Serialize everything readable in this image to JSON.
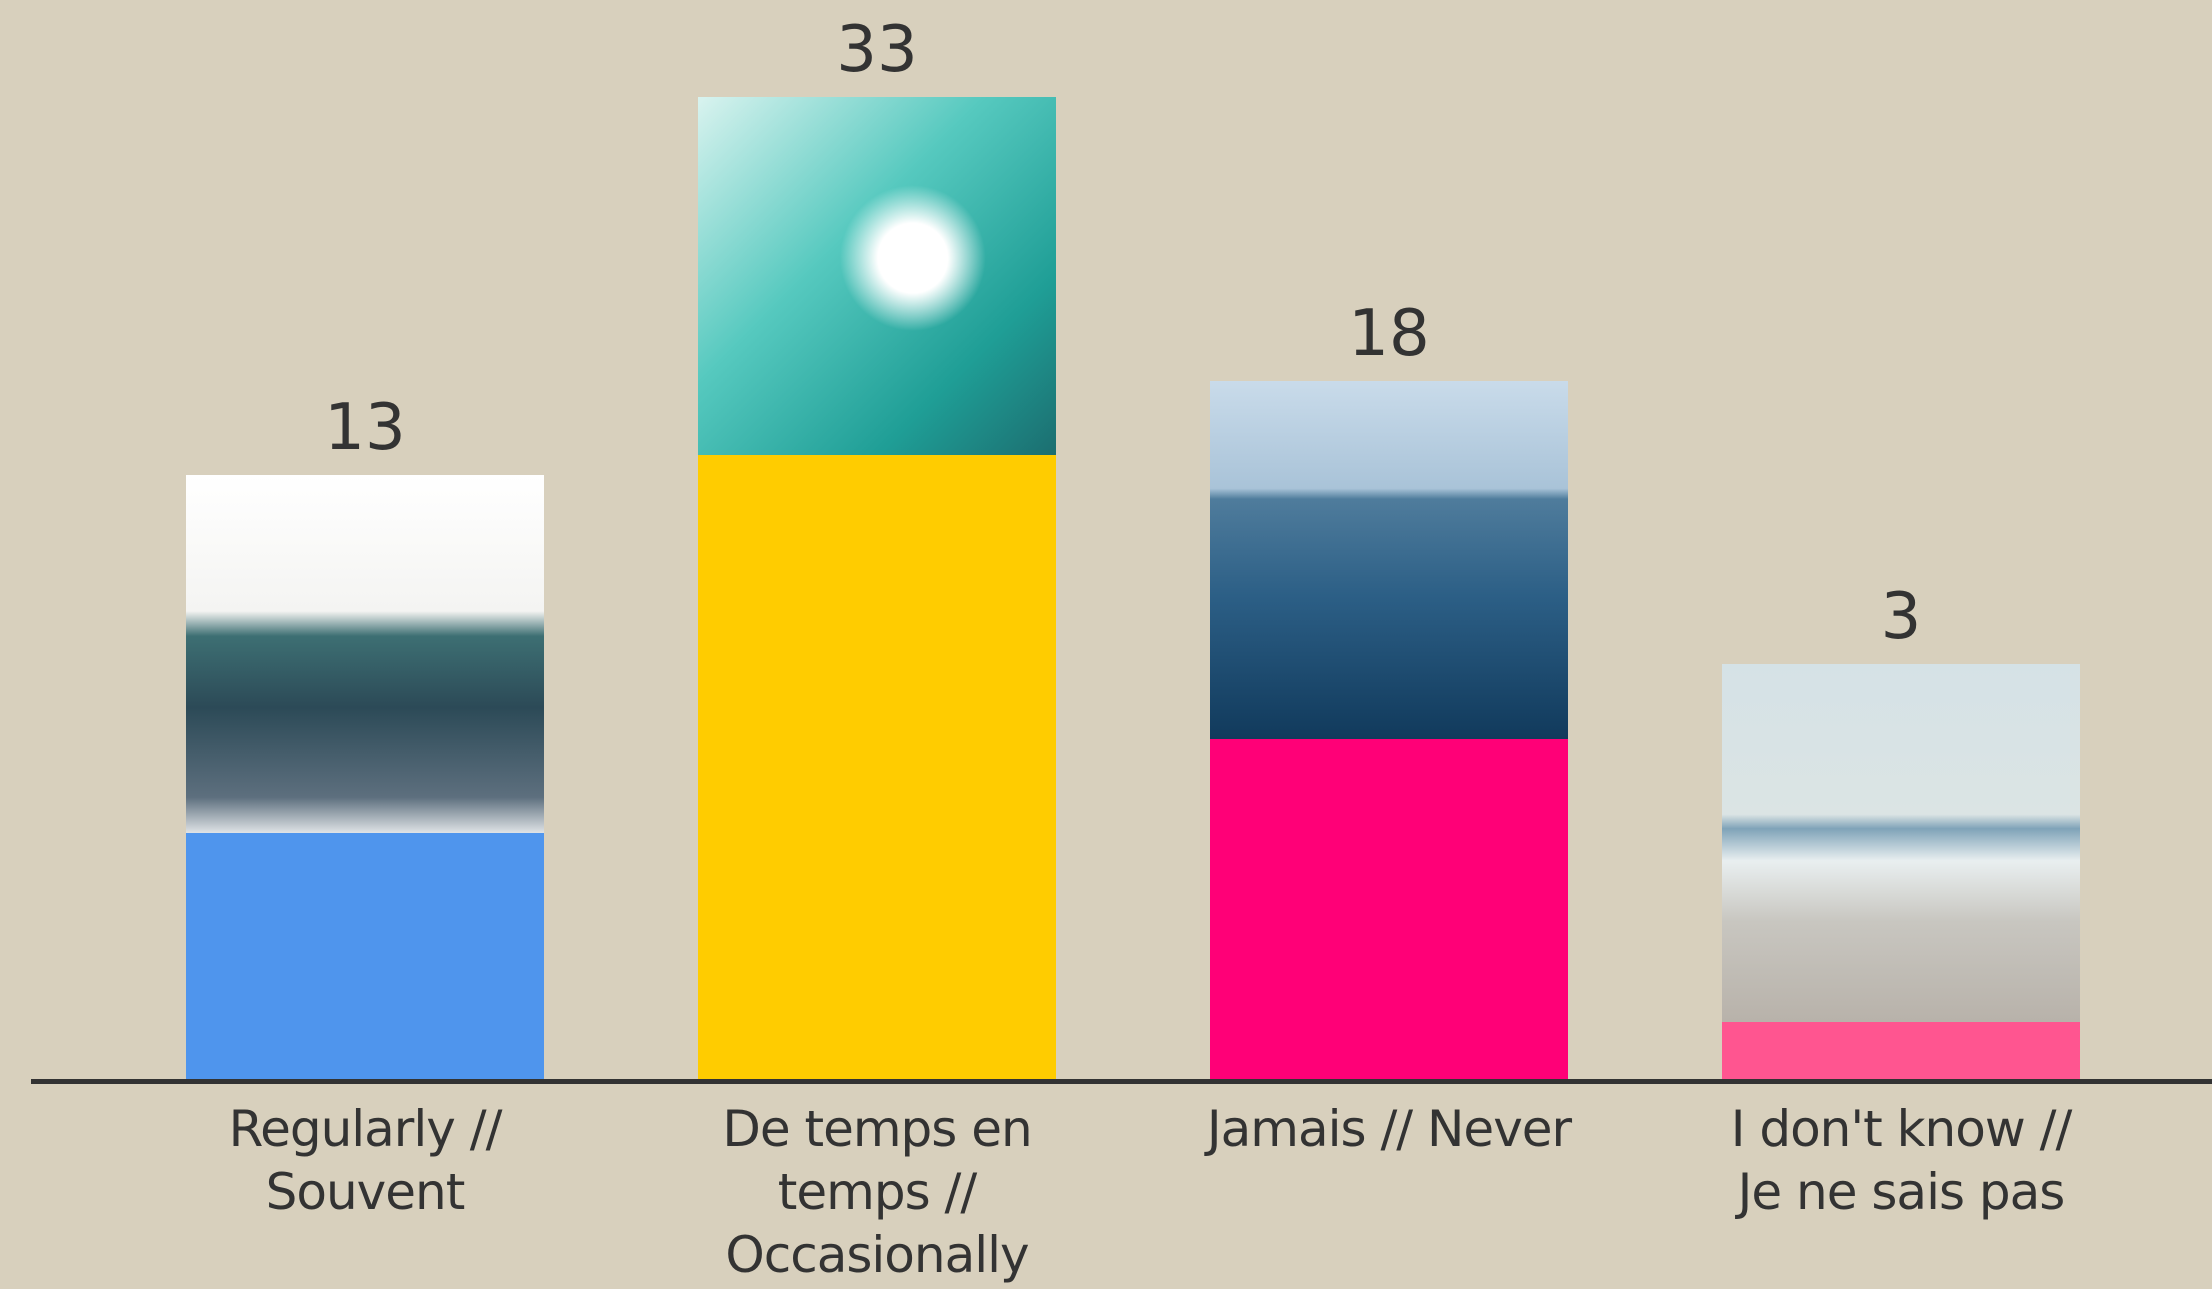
{
  "chart_data": {
    "type": "bar",
    "categories": [
      "Regularly // Souvent",
      "De temps en temps // Occasionally",
      "Jamais // Never",
      "I don't know // Je ne sais pas"
    ],
    "values": [
      13,
      33,
      18,
      3
    ],
    "colors": [
      "#4f95ed",
      "#ffcc00",
      "#ff0077",
      "#ff5590"
    ]
  }
}
